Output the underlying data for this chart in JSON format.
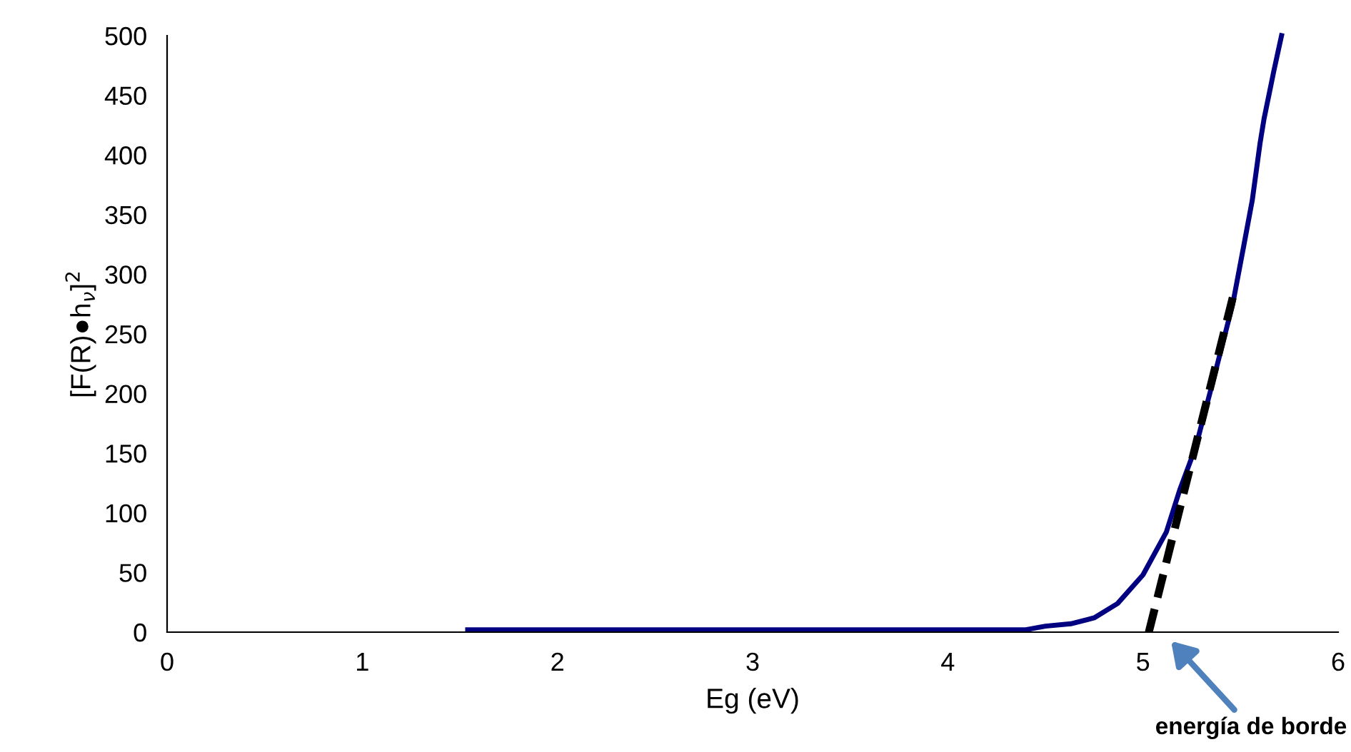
{
  "chart_data": {
    "type": "line",
    "xlabel": "Eg (eV)",
    "ylabel": "[F(R)●h$_{ν}$]$^{2}$",
    "series": [
      {
        "color": "#000080",
        "line_style": "solid",
        "x": [
          1.54,
          2.0,
          3.0,
          4.0,
          4.4,
          4.5,
          4.63,
          4.75,
          4.87,
          5.0,
          5.12,
          5.19,
          5.27,
          5.36,
          5.46,
          5.52,
          5.56,
          5.6,
          5.62,
          5.67,
          5.71
        ],
        "values": [
          2,
          2,
          2,
          2,
          2,
          5,
          7,
          12,
          24,
          48,
          84,
          120,
          155,
          211,
          275,
          327,
          362,
          410,
          430,
          470,
          500
        ]
      },
      {
        "color": "#000000",
        "line_style": "dashed",
        "x": [
          5.03,
          5.47
        ],
        "values": [
          0,
          287
        ]
      }
    ],
    "xlim": [
      0,
      6
    ],
    "xticks": [
      0,
      1,
      2,
      3,
      4,
      5,
      6
    ],
    "ylim": [
      0,
      500
    ],
    "yticks": [
      0,
      50,
      100,
      150,
      200,
      250,
      300,
      350,
      400,
      450,
      500
    ],
    "grid": false,
    "marker": "none",
    "annotations": [
      "energía de borde"
    ]
  }
}
